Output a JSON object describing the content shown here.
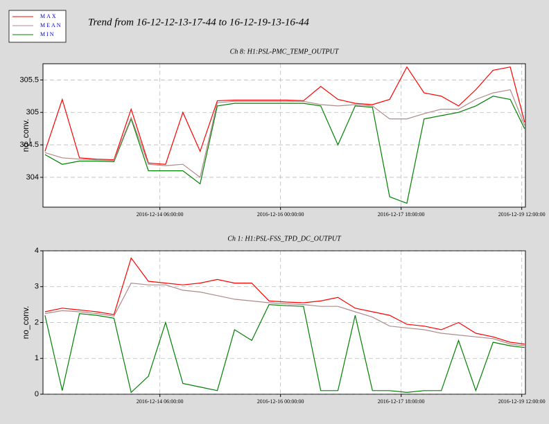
{
  "title": "Trend from 16-12-12-13-17-44 to 16-12-19-13-16-44",
  "chart_data": [
    {
      "type": "line",
      "title": "Ch 8: H1:PSL-PMC_TEMP_OUTPUT",
      "ylabel": "no_conv.",
      "x": [
        "2016-12-12T14:00:00",
        "2016-12-12T20:00:00",
        "2016-12-13T02:00:00",
        "2016-12-13T08:00:00",
        "2016-12-13T14:00:00",
        "2016-12-13T20:00:00",
        "2016-12-14T02:00:00",
        "2016-12-14T08:00:00",
        "2016-12-14T14:00:00",
        "2016-12-14T20:00:00",
        "2016-12-15T02:00:00",
        "2016-12-15T08:00:00",
        "2016-12-15T14:00:00",
        "2016-12-15T20:00:00",
        "2016-12-16T02:00:00",
        "2016-12-16T08:00:00",
        "2016-12-16T14:00:00",
        "2016-12-16T20:00:00",
        "2016-12-17T02:00:00",
        "2016-12-17T08:00:00",
        "2016-12-17T14:00:00",
        "2016-12-17T20:00:00",
        "2016-12-18T02:00:00",
        "2016-12-18T08:00:00",
        "2016-12-18T14:00:00",
        "2016-12-18T20:00:00",
        "2016-12-19T02:00:00",
        "2016-12-19T08:00:00",
        "2016-12-19T13:00:00"
      ],
      "series": [
        {
          "name": "MAX",
          "color": "#ff0000",
          "values": [
            304.4,
            305.2,
            304.3,
            304.28,
            304.27,
            305.05,
            304.22,
            304.2,
            305.0,
            304.4,
            305.18,
            305.19,
            305.19,
            305.19,
            305.19,
            305.18,
            305.4,
            305.2,
            305.14,
            305.12,
            305.2,
            305.7,
            305.3,
            305.25,
            305.1,
            305.35,
            305.65,
            305.7,
            304.85
          ]
        },
        {
          "name": "MEAN",
          "color": "#b08a8a",
          "values": [
            304.38,
            304.3,
            304.28,
            304.27,
            304.26,
            304.92,
            304.2,
            304.18,
            304.2,
            304.0,
            305.15,
            305.17,
            305.17,
            305.17,
            305.17,
            305.17,
            305.12,
            305.1,
            305.12,
            305.1,
            304.9,
            304.9,
            304.98,
            305.05,
            305.05,
            305.2,
            305.3,
            305.35,
            304.8
          ]
        },
        {
          "name": "MIN",
          "color": "#008000",
          "values": [
            304.35,
            304.2,
            304.25,
            304.25,
            304.24,
            304.9,
            304.1,
            304.1,
            304.1,
            303.9,
            305.1,
            305.14,
            305.14,
            305.14,
            305.14,
            305.14,
            305.1,
            304.5,
            305.1,
            305.08,
            303.7,
            303.6,
            304.9,
            304.95,
            305.0,
            305.1,
            305.25,
            305.2,
            304.75
          ]
        }
      ],
      "xlim": [
        "2016-12-12T13:17:44",
        "2016-12-19T13:16:44"
      ],
      "xticks": [
        {
          "value": "2016-12-14T06:00:00",
          "label": "2016-12-14 06:00:00"
        },
        {
          "value": "2016-12-16T00:00:00",
          "label": "2016-12-16 00:00:00"
        },
        {
          "value": "2016-12-17T18:00:00",
          "label": "2016-12-17 18:00:00"
        },
        {
          "value": "2016-12-19T12:00:00",
          "label": "2016-12-19 12:00:00"
        }
      ],
      "ylim": [
        303.54,
        305.75
      ],
      "yticks": [
        304,
        304.5,
        305,
        305.5
      ],
      "grid": true
    },
    {
      "type": "line",
      "title": "Ch 1: H1:PSL-FSS_TPD_DC_OUTPUT",
      "ylabel": "no_conv.",
      "x": [
        "2016-12-12T14:00:00",
        "2016-12-12T20:00:00",
        "2016-12-13T02:00:00",
        "2016-12-13T08:00:00",
        "2016-12-13T14:00:00",
        "2016-12-13T20:00:00",
        "2016-12-14T02:00:00",
        "2016-12-14T08:00:00",
        "2016-12-14T14:00:00",
        "2016-12-14T20:00:00",
        "2016-12-15T02:00:00",
        "2016-12-15T08:00:00",
        "2016-12-15T14:00:00",
        "2016-12-15T20:00:00",
        "2016-12-16T02:00:00",
        "2016-12-16T08:00:00",
        "2016-12-16T14:00:00",
        "2016-12-16T20:00:00",
        "2016-12-17T02:00:00",
        "2016-12-17T08:00:00",
        "2016-12-17T14:00:00",
        "2016-12-17T20:00:00",
        "2016-12-18T02:00:00",
        "2016-12-18T08:00:00",
        "2016-12-18T14:00:00",
        "2016-12-18T20:00:00",
        "2016-12-19T02:00:00",
        "2016-12-19T08:00:00",
        "2016-12-19T13:00:00"
      ],
      "series": [
        {
          "color": "#ff0000",
          "values": [
            2.3,
            2.4,
            2.35,
            2.3,
            2.22,
            3.8,
            3.15,
            3.1,
            3.05,
            3.1,
            3.2,
            3.1,
            3.1,
            2.6,
            2.57,
            2.55,
            2.6,
            2.7,
            2.4,
            2.3,
            2.2,
            1.95,
            1.9,
            1.8,
            2.0,
            1.7,
            1.6,
            1.45,
            1.4
          ]
        },
        {
          "color": "#b08a8a",
          "values": [
            2.25,
            2.33,
            2.3,
            2.25,
            2.18,
            3.1,
            3.05,
            3.05,
            2.9,
            2.85,
            2.75,
            2.65,
            2.6,
            2.55,
            2.52,
            2.5,
            2.45,
            2.45,
            2.3,
            2.15,
            1.9,
            1.85,
            1.8,
            1.7,
            1.65,
            1.6,
            1.55,
            1.4,
            1.35
          ]
        },
        {
          "color": "#008000",
          "values": [
            2.2,
            0.1,
            2.25,
            2.2,
            2.12,
            0.05,
            0.5,
            2.0,
            0.3,
            0.2,
            0.1,
            1.8,
            1.5,
            2.5,
            2.47,
            2.45,
            0.1,
            0.1,
            2.2,
            0.1,
            0.1,
            0.05,
            0.1,
            0.1,
            1.5,
            0.1,
            1.45,
            1.35,
            1.3
          ]
        }
      ],
      "xlim": [
        "2016-12-12T13:17:44",
        "2016-12-19T13:16:44"
      ],
      "xticks": [
        {
          "value": "2016-12-14T06:00:00",
          "label": "2016-12-14 06:00:00"
        },
        {
          "value": "2016-12-16T00:00:00",
          "label": "2016-12-16 00:00:00"
        },
        {
          "value": "2016-12-17T18:00:00",
          "label": "2016-12-17 18:00:00"
        },
        {
          "value": "2016-12-19T12:00:00",
          "label": "2016-12-19 12:00:00"
        }
      ],
      "ylim": [
        0,
        4
      ],
      "yticks": [
        0,
        1,
        2,
        3,
        4
      ],
      "grid": true
    }
  ]
}
